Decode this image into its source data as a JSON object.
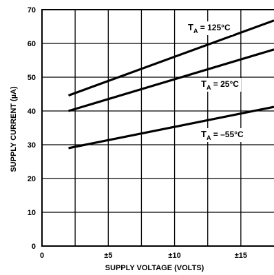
{
  "chart_data": {
    "type": "line",
    "xlabel": "SUPPLY VOLTAGE (VOLTS)",
    "ylabel": "SUPPLY CURRENT (µA)",
    "xlim": [
      0,
      17.5
    ],
    "ylim": [
      0,
      70
    ],
    "x_ticks": [
      {
        "value": 0,
        "label": "0"
      },
      {
        "value": 5,
        "label": "±5"
      },
      {
        "value": 10,
        "label": "±10"
      },
      {
        "value": 15,
        "label": "±15"
      }
    ],
    "y_ticks": [
      {
        "value": 0,
        "label": "0"
      },
      {
        "value": 10,
        "label": "10"
      },
      {
        "value": 20,
        "label": "20"
      },
      {
        "value": 30,
        "label": "30"
      },
      {
        "value": 40,
        "label": "40"
      },
      {
        "value": 50,
        "label": "50"
      },
      {
        "value": 60,
        "label": "60"
      },
      {
        "value": 70,
        "label": "70"
      }
    ],
    "grid": true,
    "grid_step_x": 2.5,
    "grid_step_y": 10,
    "series": [
      {
        "name": "TA = 125°C",
        "label_main": "T",
        "label_sub": "A",
        "label_rest": " = 125°C",
        "x": [
          2,
          17.5
        ],
        "y": [
          44.6,
          66.8
        ]
      },
      {
        "name": "TA = 25°C",
        "label_main": "T",
        "label_sub": "A",
        "label_rest": " = 25°C",
        "x": [
          2,
          17.5
        ],
        "y": [
          40.0,
          58.2
        ]
      },
      {
        "name": "TA = –55°C",
        "label_main": "T",
        "label_sub": "A",
        "label_rest": " = –55°C",
        "x": [
          2,
          17.5
        ],
        "y": [
          29.0,
          41.2
        ]
      }
    ]
  }
}
